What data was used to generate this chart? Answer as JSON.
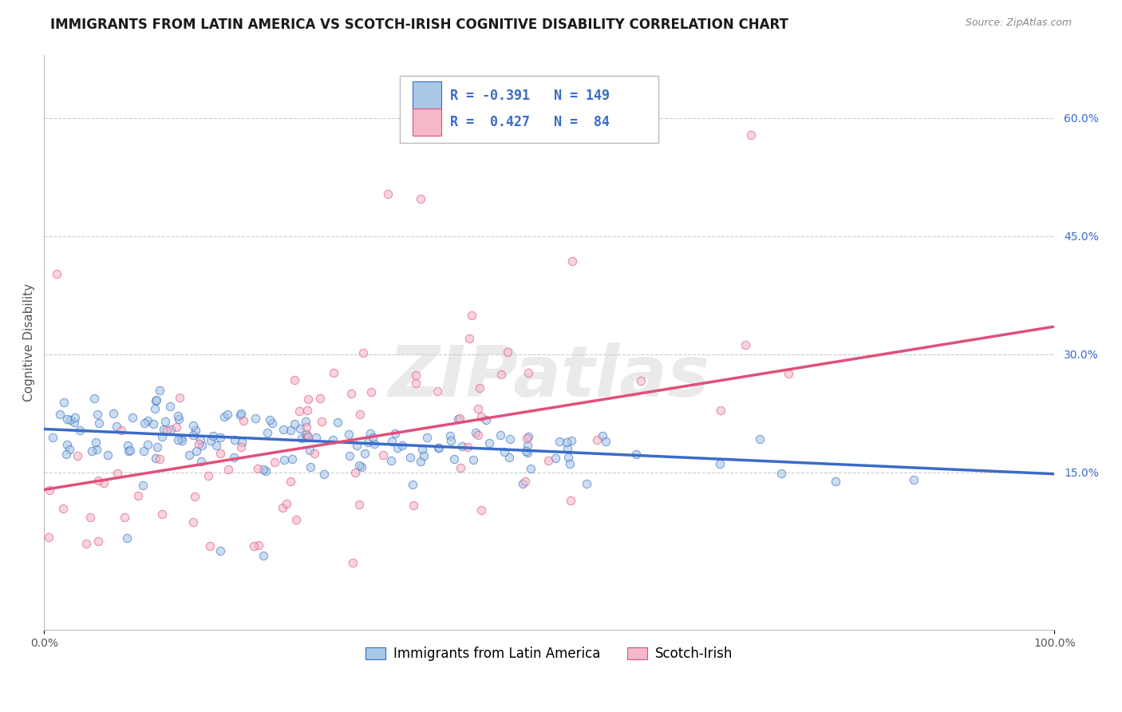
{
  "title": "IMMIGRANTS FROM LATIN AMERICA VS SCOTCH-IRISH COGNITIVE DISABILITY CORRELATION CHART",
  "source": "Source: ZipAtlas.com",
  "ylabel": "Cognitive Disability",
  "xlim": [
    0,
    1.0
  ],
  "ylim": [
    -0.05,
    0.68
  ],
  "yticks_right": [
    0.15,
    0.3,
    0.45,
    0.6
  ],
  "ytick_labels_right": [
    "15.0%",
    "30.0%",
    "45.0%",
    "60.0%"
  ],
  "blue_R": -0.391,
  "blue_N": 149,
  "pink_R": 0.427,
  "pink_N": 84,
  "blue_color": "#a8c8e8",
  "pink_color": "#f4b8c8",
  "blue_line_color": "#3a6bc8",
  "pink_line_color": "#e0507a",
  "blue_trend_start": 0.205,
  "blue_trend_end": 0.148,
  "pink_trend_start": 0.128,
  "pink_trend_end": 0.335,
  "watermark": "ZIPatlas",
  "watermark_color": "#cccccc",
  "legend_label_blue": "Immigrants from Latin America",
  "legend_label_pink": "Scotch-Irish",
  "background_color": "#ffffff",
  "grid_color": "#cccccc",
  "title_fontsize": 12,
  "axis_label_fontsize": 11,
  "tick_fontsize": 10,
  "legend_fontsize": 12
}
